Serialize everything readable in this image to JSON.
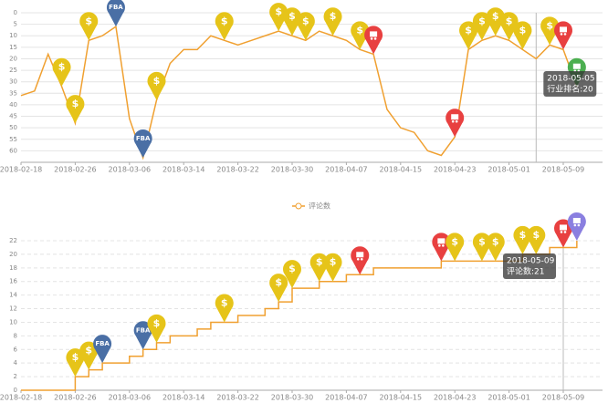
{
  "chart_data": [
    {
      "type": "line",
      "x": [
        "2018-02-18",
        "2018-02-20",
        "2018-02-22",
        "2018-02-24",
        "2018-02-26",
        "2018-02-28",
        "2018-03-02",
        "2018-03-04",
        "2018-03-06",
        "2018-03-08",
        "2018-03-10",
        "2018-03-12",
        "2018-03-14",
        "2018-03-16",
        "2018-03-18",
        "2018-03-20",
        "2018-03-22",
        "2018-03-24",
        "2018-03-26",
        "2018-03-28",
        "2018-03-30",
        "2018-04-01",
        "2018-04-03",
        "2018-04-05",
        "2018-04-07",
        "2018-04-09",
        "2018-04-11",
        "2018-04-13",
        "2018-04-15",
        "2018-04-17",
        "2018-04-19",
        "2018-04-21",
        "2018-04-23",
        "2018-04-25",
        "2018-04-27",
        "2018-04-29",
        "2018-05-01",
        "2018-05-03",
        "2018-05-05",
        "2018-05-07",
        "2018-05-09",
        "2018-05-11"
      ],
      "series": [
        {
          "color": "#f0a030",
          "values": [
            36,
            34,
            18,
            32,
            48,
            12,
            10,
            6,
            46,
            63,
            38,
            22,
            16,
            16,
            10,
            12,
            14,
            12,
            10,
            8,
            10,
            12,
            8,
            10,
            12,
            16,
            18,
            42,
            50,
            52,
            60,
            62,
            54,
            16,
            12,
            10,
            12,
            16,
            20,
            14,
            16,
            32
          ]
        }
      ],
      "ylim": [
        0,
        65
      ],
      "y_reversed": true,
      "yticks": [
        0,
        5,
        10,
        15,
        20,
        25,
        30,
        35,
        40,
        45,
        50,
        55,
        60
      ],
      "xticks": [
        "2018-02-18",
        "2018-02-26",
        "2018-03-06",
        "2018-03-14",
        "2018-03-22",
        "2018-03-30",
        "2018-04-07",
        "2018-04-15",
        "2018-04-23",
        "2018-05-01",
        "2018-05-09"
      ],
      "grid": true,
      "markers": [
        {
          "x": "2018-02-24",
          "label": "$",
          "color": "#e6c419"
        },
        {
          "x": "2018-02-26",
          "label": "$",
          "color": "#e6c419"
        },
        {
          "x": "2018-02-28",
          "label": "$",
          "color": "#e6c419"
        },
        {
          "x": "2018-03-04",
          "label": "FBA",
          "color": "#4a6fa5"
        },
        {
          "x": "2018-03-08",
          "label": "FBA",
          "color": "#4a6fa5"
        },
        {
          "x": "2018-03-10",
          "label": "$",
          "color": "#e6c419"
        },
        {
          "x": "2018-03-20",
          "label": "$",
          "color": "#e6c419"
        },
        {
          "x": "2018-03-28",
          "label": "$",
          "color": "#e6c419"
        },
        {
          "x": "2018-03-30",
          "label": "$",
          "color": "#e6c419"
        },
        {
          "x": "2018-04-01",
          "label": "$",
          "color": "#e6c419"
        },
        {
          "x": "2018-04-05",
          "label": "$",
          "color": "#e6c419"
        },
        {
          "x": "2018-04-09",
          "label": "$",
          "color": "#e6c419"
        },
        {
          "x": "2018-04-11",
          "color": "#e84040"
        },
        {
          "x": "2018-04-23",
          "color": "#e84040"
        },
        {
          "x": "2018-04-25",
          "label": "$",
          "color": "#e6c419"
        },
        {
          "x": "2018-04-27",
          "label": "$",
          "color": "#e6c419"
        },
        {
          "x": "2018-04-29",
          "label": "$",
          "color": "#e6c419"
        },
        {
          "x": "2018-05-01",
          "label": "$",
          "color": "#e6c419"
        },
        {
          "x": "2018-05-03",
          "label": "$",
          "color": "#e6c419"
        },
        {
          "x": "2018-05-07",
          "label": "$",
          "color": "#e6c419"
        },
        {
          "x": "2018-05-09",
          "color": "#e84040"
        },
        {
          "x": "2018-05-11",
          "color": "#4caf50"
        }
      ],
      "tooltip": {
        "x": "2018-05-05",
        "title": "2018-05-05",
        "text": "行业排名:20"
      }
    },
    {
      "type": "line",
      "x": [
        "2018-02-18",
        "2018-02-20",
        "2018-02-22",
        "2018-02-24",
        "2018-02-26",
        "2018-02-28",
        "2018-03-02",
        "2018-03-04",
        "2018-03-06",
        "2018-03-08",
        "2018-03-10",
        "2018-03-12",
        "2018-03-14",
        "2018-03-16",
        "2018-03-18",
        "2018-03-20",
        "2018-03-22",
        "2018-03-24",
        "2018-03-26",
        "2018-03-28",
        "2018-03-30",
        "2018-04-01",
        "2018-04-03",
        "2018-04-05",
        "2018-04-07",
        "2018-04-09",
        "2018-04-11",
        "2018-04-13",
        "2018-04-15",
        "2018-04-17",
        "2018-04-19",
        "2018-04-21",
        "2018-04-23",
        "2018-04-25",
        "2018-04-27",
        "2018-04-29",
        "2018-05-01",
        "2018-05-03",
        "2018-05-05",
        "2018-05-07",
        "2018-05-09",
        "2018-05-11"
      ],
      "series": [
        {
          "name": "评论数",
          "color": "#f0a030",
          "step": true,
          "values": [
            0,
            0,
            0,
            0,
            2,
            3,
            4,
            4,
            5,
            6,
            7,
            8,
            8,
            9,
            10,
            10,
            11,
            11,
            12,
            13,
            15,
            15,
            16,
            16,
            17,
            17,
            18,
            18,
            18,
            18,
            18,
            19,
            19,
            19,
            19,
            19,
            19,
            20,
            20,
            21,
            21,
            22
          ]
        }
      ],
      "ylim": [
        0,
        22
      ],
      "yticks": [
        0,
        2,
        4,
        6,
        8,
        10,
        12,
        14,
        16,
        18,
        20,
        22
      ],
      "xticks": [
        "2018-02-18",
        "2018-02-26",
        "2018-03-06",
        "2018-03-14",
        "2018-03-22",
        "2018-03-30",
        "2018-04-07",
        "2018-04-15",
        "2018-04-23",
        "2018-05-01",
        "2018-05-09"
      ],
      "grid": true,
      "markers": [
        {
          "x": "2018-02-26",
          "label": "$",
          "color": "#e6c419"
        },
        {
          "x": "2018-02-28",
          "label": "$",
          "color": "#e6c419"
        },
        {
          "x": "2018-03-02",
          "label": "FBA",
          "color": "#4a6fa5"
        },
        {
          "x": "2018-03-08",
          "label": "FBA",
          "color": "#4a6fa5"
        },
        {
          "x": "2018-03-10",
          "label": "$",
          "color": "#e6c419"
        },
        {
          "x": "2018-03-20",
          "label": "$",
          "color": "#e6c419"
        },
        {
          "x": "2018-03-28",
          "label": "$",
          "color": "#e6c419"
        },
        {
          "x": "2018-03-30",
          "label": "$",
          "color": "#e6c419"
        },
        {
          "x": "2018-04-03",
          "label": "$",
          "color": "#e6c419"
        },
        {
          "x": "2018-04-05",
          "label": "$",
          "color": "#e6c419"
        },
        {
          "x": "2018-04-09",
          "color": "#e84040"
        },
        {
          "x": "2018-04-21",
          "color": "#e84040"
        },
        {
          "x": "2018-04-23",
          "label": "$",
          "color": "#e6c419"
        },
        {
          "x": "2018-04-27",
          "label": "$",
          "color": "#e6c419"
        },
        {
          "x": "2018-04-29",
          "label": "$",
          "color": "#e6c419"
        },
        {
          "x": "2018-05-03",
          "label": "$",
          "color": "#e6c419"
        },
        {
          "x": "2018-05-05",
          "label": "$",
          "color": "#e6c419"
        },
        {
          "x": "2018-05-09",
          "color": "#e84040"
        },
        {
          "x": "2018-05-11",
          "color": "#8a7fe0"
        }
      ],
      "tooltip": {
        "x": "2018-05-09",
        "title": "2018-05-09",
        "text": "评论数:21"
      }
    }
  ]
}
